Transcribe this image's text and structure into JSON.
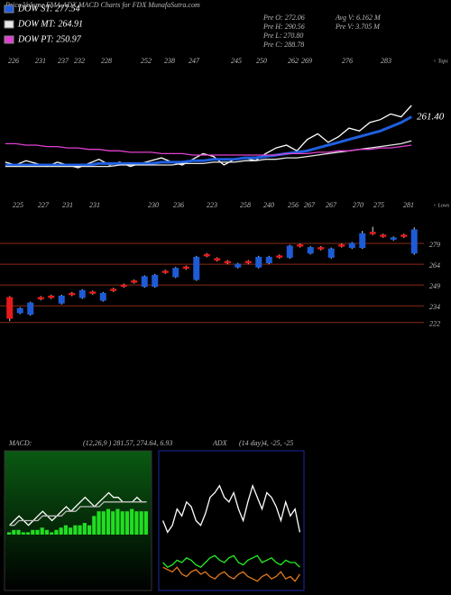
{
  "header": {
    "title": "Price,Volume,EMA,ADX,MACD Charts for FDX  MunafaSutra.com",
    "stats": [
      "Pre O: 272.06",
      "Pre H: 290.56",
      "Pre L: 270.80",
      "Pre C: 288.78",
      "Avg V: 6.162 M",
      "Pre V: 3.705 M"
    ]
  },
  "chart_data": [
    {
      "type": "line",
      "annotation": "261.40",
      "tops_label": "< Tops",
      "lows_label": "< Lows",
      "tops": [
        226,
        231,
        237,
        232,
        228,
        252,
        238,
        247,
        245,
        250,
        262,
        269,
        276,
        283
      ],
      "lows": [
        225,
        227,
        231,
        231,
        230,
        236,
        223,
        258,
        240,
        256,
        267,
        267,
        270,
        275,
        281
      ],
      "ylim": [
        200,
        270
      ],
      "series": [
        {
          "color": "#ffffff",
          "values": [
            216,
            214,
            217,
            215,
            213,
            216,
            214,
            212,
            215,
            218,
            214,
            216,
            213,
            215,
            217,
            219,
            216,
            214,
            218,
            222,
            220,
            214,
            218,
            219,
            217,
            222,
            226,
            228,
            224,
            232,
            236,
            230,
            234,
            240,
            238,
            244,
            246,
            250,
            248,
            256
          ]
        },
        {
          "name": "DOW ST: 277.54",
          "color": "#1f5fe0",
          "values": [
            214,
            214,
            214,
            214,
            214,
            214,
            214,
            214,
            214,
            215,
            215,
            215,
            215,
            215,
            215,
            216,
            216,
            216,
            217,
            217,
            218,
            218,
            218,
            219,
            219,
            220,
            221,
            222,
            223,
            224,
            226,
            228,
            230,
            232,
            234,
            236,
            238,
            241,
            244,
            248
          ]
        },
        {
          "name": "DOW MT: 264.91",
          "color": "#e8e8e8",
          "values": [
            213,
            213,
            213,
            213,
            213,
            213,
            213,
            213,
            213,
            213,
            213,
            214,
            214,
            214,
            214,
            214,
            214,
            215,
            215,
            215,
            216,
            216,
            216,
            217,
            217,
            218,
            218,
            219,
            219,
            220,
            221,
            222,
            223,
            224,
            225,
            226,
            227,
            228,
            229,
            231
          ]
        },
        {
          "name": "DOW PT: 250.97",
          "color": "#e040d0",
          "values": [
            229,
            229,
            228,
            228,
            227,
            227,
            226,
            226,
            225,
            225,
            224,
            224,
            223,
            223,
            223,
            222,
            222,
            222,
            221,
            221,
            221,
            221,
            221,
            221,
            221,
            221,
            221,
            222,
            222,
            222,
            223,
            223,
            224,
            224,
            225,
            225,
            226,
            226,
            227,
            228
          ]
        }
      ]
    },
    {
      "type": "candlestick",
      "ylim": [
        214,
        292
      ],
      "yticks": [
        222,
        234,
        249,
        264,
        279
      ],
      "up_color": "#1e5bd6",
      "down_color": "#e51a1a",
      "grid_color": "#8a2a12",
      "open": [
        240,
        229,
        228,
        240,
        241,
        236,
        243,
        240,
        244,
        238,
        246,
        249,
        252,
        248,
        248,
        259,
        255,
        262,
        253,
        271,
        268,
        266,
        262,
        266,
        262,
        265,
        270,
        269,
        278,
        272,
        276,
        269,
        278,
        276,
        276,
        287,
        285,
        282,
        285,
        272.06
      ],
      "high": [
        241,
        233,
        237,
        241,
        242,
        242,
        244,
        246,
        245,
        244,
        247,
        250,
        253,
        256,
        257,
        260,
        262,
        263,
        270,
        272,
        269,
        267,
        265,
        267,
        270,
        270,
        271,
        278,
        279,
        277,
        277,
        276,
        279,
        280,
        288,
        291,
        286,
        284,
        286,
        290.56
      ],
      "low": [
        223,
        228,
        227,
        238,
        239,
        235,
        241,
        239,
        242,
        237,
        244,
        247,
        250,
        247,
        247,
        257,
        254,
        260,
        252,
        269,
        266,
        264,
        261,
        264,
        261,
        264,
        268,
        268,
        276,
        271,
        274,
        268,
        276,
        275,
        275,
        285,
        283,
        281,
        283,
        270.8
      ],
      "close": [
        225,
        232,
        236,
        239,
        240,
        241,
        242,
        245,
        243,
        243,
        245,
        248,
        251,
        255,
        256,
        258,
        261,
        261,
        269,
        270,
        267,
        265,
        264,
        265,
        269,
        269,
        269,
        277,
        277,
        276,
        275,
        275,
        277,
        279,
        286,
        286,
        284,
        283,
        284,
        288.78
      ]
    },
    {
      "type": "line",
      "title": "MACD:",
      "subtitle": "(12,26,9 ) 281.57,  274.64,  6.93",
      "ylim": [
        -12,
        18
      ],
      "series": [
        {
          "kind": "bar",
          "color": "#22dd22",
          "values": [
            0.5,
            1,
            1,
            0.5,
            0.5,
            1,
            1,
            1.5,
            1,
            0.5,
            1,
            1.5,
            2,
            1.5,
            2,
            2,
            2.5,
            2,
            4,
            5,
            5,
            5.5,
            5,
            5.5,
            5,
            5,
            5.5,
            5,
            5,
            5
          ]
        },
        {
          "color": "#ffffff",
          "values": [
            2,
            3,
            4,
            3,
            2,
            3,
            4,
            5,
            4,
            3,
            4,
            5,
            6,
            5,
            6,
            7,
            8,
            7,
            6,
            7,
            8,
            9,
            8,
            8,
            7,
            7,
            7,
            8,
            7,
            7
          ]
        },
        {
          "color": "#bbbbbb",
          "values": [
            2,
            2,
            3,
            3,
            3,
            3,
            3,
            4,
            4,
            4,
            4,
            4,
            5,
            5,
            5,
            6,
            6,
            6,
            6,
            6,
            7,
            7,
            7,
            7,
            7,
            7,
            7,
            7,
            7,
            7
          ]
        }
      ]
    },
    {
      "type": "line",
      "title": "ADX",
      "subtitle": "(14  day)4,  -25,  -25",
      "ylim": [
        0,
        60
      ],
      "series": [
        {
          "color": "#ffffff",
          "values": [
            30,
            25,
            28,
            35,
            32,
            38,
            36,
            30,
            28,
            33,
            40,
            42,
            45,
            40,
            38,
            42,
            35,
            30,
            38,
            45,
            40,
            35,
            42,
            40,
            36,
            30,
            38,
            32,
            35,
            25
          ]
        },
        {
          "color": "#22ee22",
          "values": [
            12,
            10,
            11,
            13,
            12,
            14,
            13,
            11,
            10,
            12,
            14,
            15,
            13,
            12,
            14,
            15,
            12,
            11,
            13,
            14,
            15,
            12,
            13,
            14,
            12,
            11,
            13,
            12,
            12,
            10
          ]
        },
        {
          "color": "#e07a20",
          "values": [
            10,
            9,
            8,
            10,
            7,
            6,
            8,
            9,
            7,
            8,
            6,
            5,
            7,
            8,
            6,
            5,
            7,
            8,
            6,
            5,
            4,
            6,
            7,
            5,
            6,
            8,
            5,
            6,
            4,
            7
          ]
        }
      ]
    }
  ]
}
